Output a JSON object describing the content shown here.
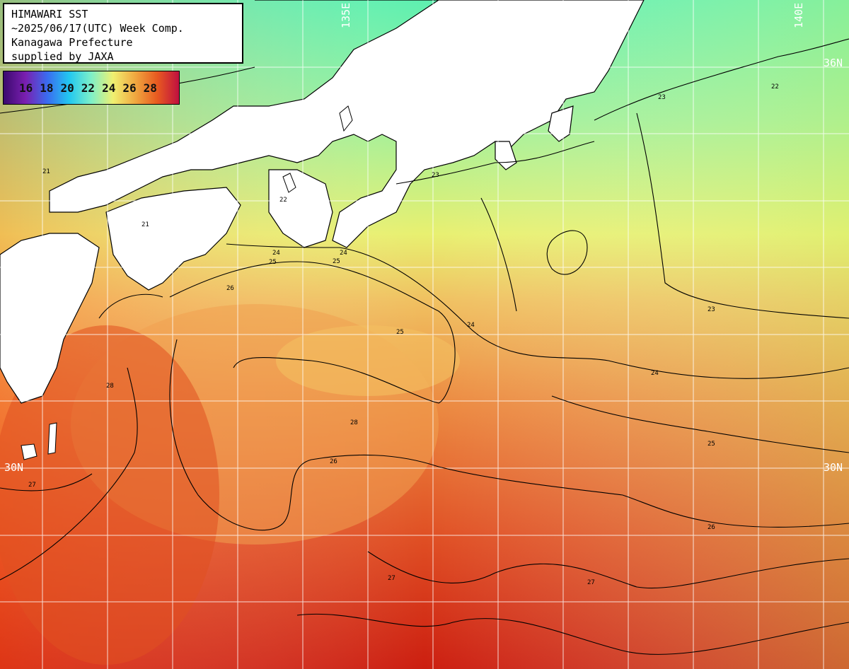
{
  "title": {
    "line1": "HIMAWARI SST",
    "line2": "~2025/06/17(UTC) Week Comp.",
    "line3": "Kanagawa Prefecture",
    "line4": "supplied by JAXA"
  },
  "legend": {
    "ticks": [
      "16",
      "18",
      "20",
      "22",
      "24",
      "26",
      "28"
    ],
    "colors": [
      "#3a0a6e",
      "#7a1fb0",
      "#3a6cf0",
      "#22c8f0",
      "#7ef0c8",
      "#f0f070",
      "#f0a840",
      "#e85a20",
      "#c01040"
    ]
  },
  "grid_labels": {
    "lat_36": "36N",
    "lat_30_left": "30N",
    "lat_30_right": "30N",
    "lon_top_1": "135E",
    "lon_top_2": "140E"
  },
  "contour_labels": [
    "21",
    "21",
    "22",
    "22",
    "23",
    "23",
    "23",
    "24",
    "24",
    "24",
    "24",
    "25",
    "25",
    "25",
    "25",
    "26",
    "26",
    "26",
    "27",
    "27",
    "27",
    "28",
    "28"
  ],
  "colors": {
    "land": "#ffffff",
    "cold_water": "#5ef0b0",
    "mid_water": "#c8f070",
    "warm_water": "#f0a050",
    "hot_water": "#d02010",
    "grid": "#ffffff",
    "contour": "#000000"
  }
}
